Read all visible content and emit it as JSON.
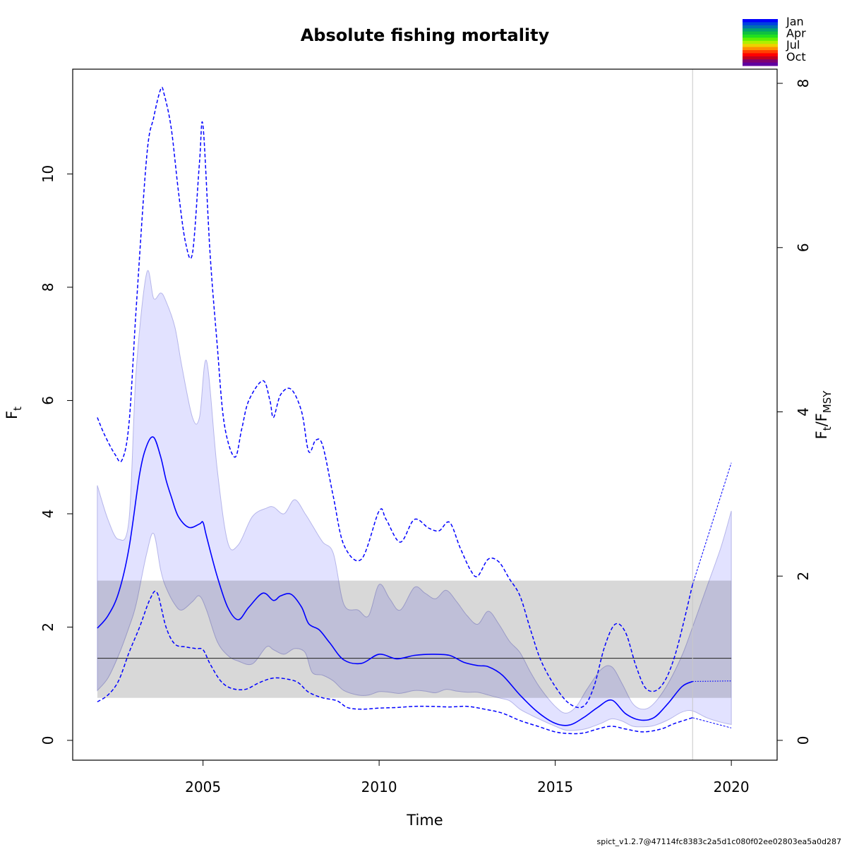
{
  "chart_data": {
    "type": "line",
    "title": "Absolute fishing mortality",
    "xlabel": "Time",
    "ylabel": "F",
    "ylabel_sub": "t",
    "y2label": {
      "main": "F",
      "sub1": "t",
      "slash": "/F",
      "sub2": "MSY"
    },
    "xlim": [
      2001.3,
      2021.3
    ],
    "ylim": [
      -0.35,
      11.85
    ],
    "x_ticks": [
      2005,
      2010,
      2015,
      2020
    ],
    "y_ticks": [
      0,
      2,
      4,
      6,
      8,
      10
    ],
    "y2_ticks": [
      0,
      2,
      4,
      6,
      8
    ],
    "y2_scale": 1.45,
    "fmsy": 1.45,
    "fmsy_ci": [
      0.75,
      2.82
    ],
    "vline_x": 2018.9,
    "estimate": {
      "x": [
        2002.0,
        2002.3,
        2002.6,
        2002.9,
        2003.2,
        2003.4,
        2003.6,
        2003.8,
        2003.95,
        2004.1,
        2004.3,
        2004.6,
        2004.9,
        2005.0,
        2005.1,
        2005.4,
        2005.7,
        2006.0,
        2006.3,
        2006.7,
        2007.0,
        2007.2,
        2007.5,
        2007.8,
        2008.0,
        2008.3,
        2008.6,
        2009.0,
        2009.5,
        2010.0,
        2010.5,
        2011.0,
        2011.5,
        2012.0,
        2012.4,
        2012.8,
        2013.1,
        2013.5,
        2014.0,
        2014.5,
        2015.0,
        2015.4,
        2015.8,
        2016.2,
        2016.6,
        2017.0,
        2017.4,
        2017.8,
        2018.2,
        2018.6,
        2018.9
      ],
      "y": [
        1.98,
        2.2,
        2.6,
        3.4,
        4.7,
        5.2,
        5.35,
        5.0,
        4.6,
        4.3,
        3.95,
        3.76,
        3.82,
        3.85,
        3.6,
        2.9,
        2.35,
        2.13,
        2.35,
        2.6,
        2.47,
        2.55,
        2.58,
        2.35,
        2.06,
        1.95,
        1.72,
        1.42,
        1.36,
        1.52,
        1.44,
        1.5,
        1.52,
        1.5,
        1.38,
        1.32,
        1.3,
        1.15,
        0.8,
        0.5,
        0.3,
        0.27,
        0.4,
        0.58,
        0.71,
        0.47,
        0.36,
        0.4,
        0.65,
        0.95,
        1.04
      ]
    },
    "estimate_forecast": {
      "x": [
        2018.9,
        2020.0
      ],
      "y": [
        1.04,
        1.05
      ]
    },
    "ci_band": {
      "x": [
        2002.0,
        2002.3,
        2002.6,
        2002.9,
        2003.1,
        2003.4,
        2003.6,
        2003.8,
        2003.95,
        2004.2,
        2004.4,
        2004.7,
        2004.9,
        2005.1,
        2005.4,
        2005.7,
        2006.0,
        2006.4,
        2006.8,
        2007.0,
        2007.3,
        2007.6,
        2007.9,
        2008.1,
        2008.4,
        2008.7,
        2009.0,
        2009.4,
        2009.7,
        2010.0,
        2010.3,
        2010.6,
        2011.0,
        2011.3,
        2011.6,
        2011.9,
        2012.2,
        2012.5,
        2012.8,
        2013.1,
        2013.4,
        2013.7,
        2014.0,
        2014.3,
        2014.6,
        2015.0,
        2015.3,
        2015.6,
        2015.9,
        2016.3,
        2016.6,
        2016.9,
        2017.2,
        2017.5,
        2017.8,
        2018.2,
        2018.6,
        2018.9,
        2019.3,
        2019.7,
        2020.0
      ],
      "lower": [
        0.88,
        1.1,
        1.5,
        2.0,
        2.4,
        3.3,
        3.65,
        3.0,
        2.7,
        2.4,
        2.3,
        2.45,
        2.55,
        2.3,
        1.75,
        1.5,
        1.4,
        1.35,
        1.65,
        1.6,
        1.52,
        1.62,
        1.55,
        1.2,
        1.15,
        1.05,
        0.88,
        0.8,
        0.8,
        0.86,
        0.85,
        0.83,
        0.88,
        0.87,
        0.84,
        0.9,
        0.87,
        0.85,
        0.85,
        0.8,
        0.75,
        0.7,
        0.55,
        0.45,
        0.36,
        0.25,
        0.18,
        0.18,
        0.21,
        0.3,
        0.38,
        0.34,
        0.25,
        0.24,
        0.26,
        0.36,
        0.5,
        0.52,
        0.4,
        0.32,
        0.28
      ],
      "upper": [
        4.5,
        3.9,
        3.55,
        3.9,
        6.5,
        8.25,
        7.8,
        7.9,
        7.75,
        7.3,
        6.6,
        5.7,
        5.7,
        6.7,
        4.8,
        3.5,
        3.45,
        3.95,
        4.1,
        4.12,
        4.0,
        4.25,
        4.0,
        3.8,
        3.5,
        3.3,
        2.4,
        2.3,
        2.2,
        2.75,
        2.5,
        2.3,
        2.7,
        2.6,
        2.5,
        2.65,
        2.45,
        2.2,
        2.05,
        2.28,
        2.05,
        1.75,
        1.55,
        1.2,
        0.9,
        0.6,
        0.48,
        0.6,
        0.9,
        1.25,
        1.3,
        1.0,
        0.65,
        0.55,
        0.65,
        1.0,
        1.5,
        2.0,
        2.7,
        3.4,
        4.05
      ]
    },
    "ci_lower_line": {
      "x": [
        2002.0,
        2002.3,
        2002.6,
        2002.9,
        2003.2,
        2003.5,
        2003.7,
        2003.95,
        2004.2,
        2004.5,
        2004.8,
        2005.0,
        2005.2,
        2005.5,
        2005.8,
        2006.2,
        2006.6,
        2007.0,
        2007.4,
        2007.7,
        2008.0,
        2008.4,
        2008.8,
        2009.1,
        2009.5,
        2010.0,
        2010.5,
        2011.0,
        2011.5,
        2012.0,
        2012.5,
        2013.0,
        2013.5,
        2014.0,
        2014.5,
        2015.0,
        2015.4,
        2015.8,
        2016.2,
        2016.6,
        2017.0,
        2017.5,
        2018.0,
        2018.4,
        2018.9
      ],
      "y": [
        0.68,
        0.8,
        1.05,
        1.55,
        2.0,
        2.5,
        2.6,
        2.0,
        1.7,
        1.65,
        1.62,
        1.6,
        1.35,
        1.05,
        0.92,
        0.9,
        1.02,
        1.1,
        1.08,
        1.02,
        0.85,
        0.75,
        0.7,
        0.58,
        0.55,
        0.57,
        0.58,
        0.6,
        0.6,
        0.59,
        0.6,
        0.55,
        0.48,
        0.35,
        0.25,
        0.15,
        0.12,
        0.13,
        0.2,
        0.25,
        0.2,
        0.15,
        0.2,
        0.3,
        0.4
      ]
    },
    "ci_upper_line": {
      "x": [
        2002.0,
        2002.2,
        2002.5,
        2002.7,
        2002.9,
        2003.1,
        2003.4,
        2003.6,
        2003.8,
        2003.9,
        2004.1,
        2004.3,
        2004.5,
        2004.7,
        2004.9,
        2005.0,
        2005.2,
        2005.4,
        2005.6,
        2005.9,
        2006.1,
        2006.3,
        2006.7,
        2006.9,
        2007.0,
        2007.2,
        2007.5,
        2007.8,
        2008.0,
        2008.2,
        2008.4,
        2008.7,
        2009.0,
        2009.5,
        2010.0,
        2010.2,
        2010.6,
        2011.0,
        2011.4,
        2011.7,
        2012.0,
        2012.3,
        2012.6,
        2012.8,
        2013.1,
        2013.4,
        2013.7,
        2014.0,
        2014.3,
        2014.6,
        2015.0,
        2015.4,
        2015.8,
        2016.1,
        2016.4,
        2016.7,
        2017.0,
        2017.3,
        2017.6,
        2018.0,
        2018.4,
        2018.9
      ],
      "y": [
        5.7,
        5.4,
        5.05,
        4.95,
        5.6,
        7.6,
        10.3,
        11.0,
        11.5,
        11.4,
        10.8,
        9.7,
        8.8,
        8.6,
        10.2,
        10.85,
        8.6,
        7.0,
        5.6,
        5.0,
        5.5,
        6.0,
        6.35,
        6.0,
        5.7,
        6.1,
        6.2,
        5.8,
        5.1,
        5.3,
        5.2,
        4.3,
        3.45,
        3.2,
        4.05,
        3.9,
        3.5,
        3.9,
        3.75,
        3.7,
        3.85,
        3.4,
        3.0,
        2.9,
        3.2,
        3.15,
        2.85,
        2.55,
        1.95,
        1.4,
        0.95,
        0.65,
        0.6,
        0.95,
        1.65,
        2.05,
        1.9,
        1.3,
        0.9,
        0.95,
        1.5,
        2.75
      ]
    },
    "ci_upper_forecast": {
      "x": [
        2018.9,
        2020.0
      ],
      "y": [
        2.75,
        4.9
      ]
    },
    "ci_lower_forecast": {
      "x": [
        2018.9,
        2020.0
      ],
      "y": [
        0.4,
        0.22
      ]
    }
  },
  "legend": {
    "labels": [
      "Jan",
      "Apr",
      "Jul",
      "Oct"
    ],
    "colors": [
      "#0000ff",
      "#0040e0",
      "#0070b0",
      "#00a070",
      "#10c040",
      "#20e020",
      "#60f000",
      "#b0f000",
      "#f0d000",
      "#ff9000",
      "#ff4000",
      "#ff0000",
      "#c00020",
      "#800070",
      "#6000a0"
    ]
  },
  "footer": "spict_v1.2.7@47114fc8383c2a5d1c080f02ee02803ea5a0d287",
  "colors": {
    "series": "#0000ff",
    "band_fill": "#e2e2ff",
    "band_stroke": "#b6b6ea",
    "ref_band": "#cfcfcf",
    "ref_line": "#333333",
    "vline": "#c8c8c8"
  }
}
